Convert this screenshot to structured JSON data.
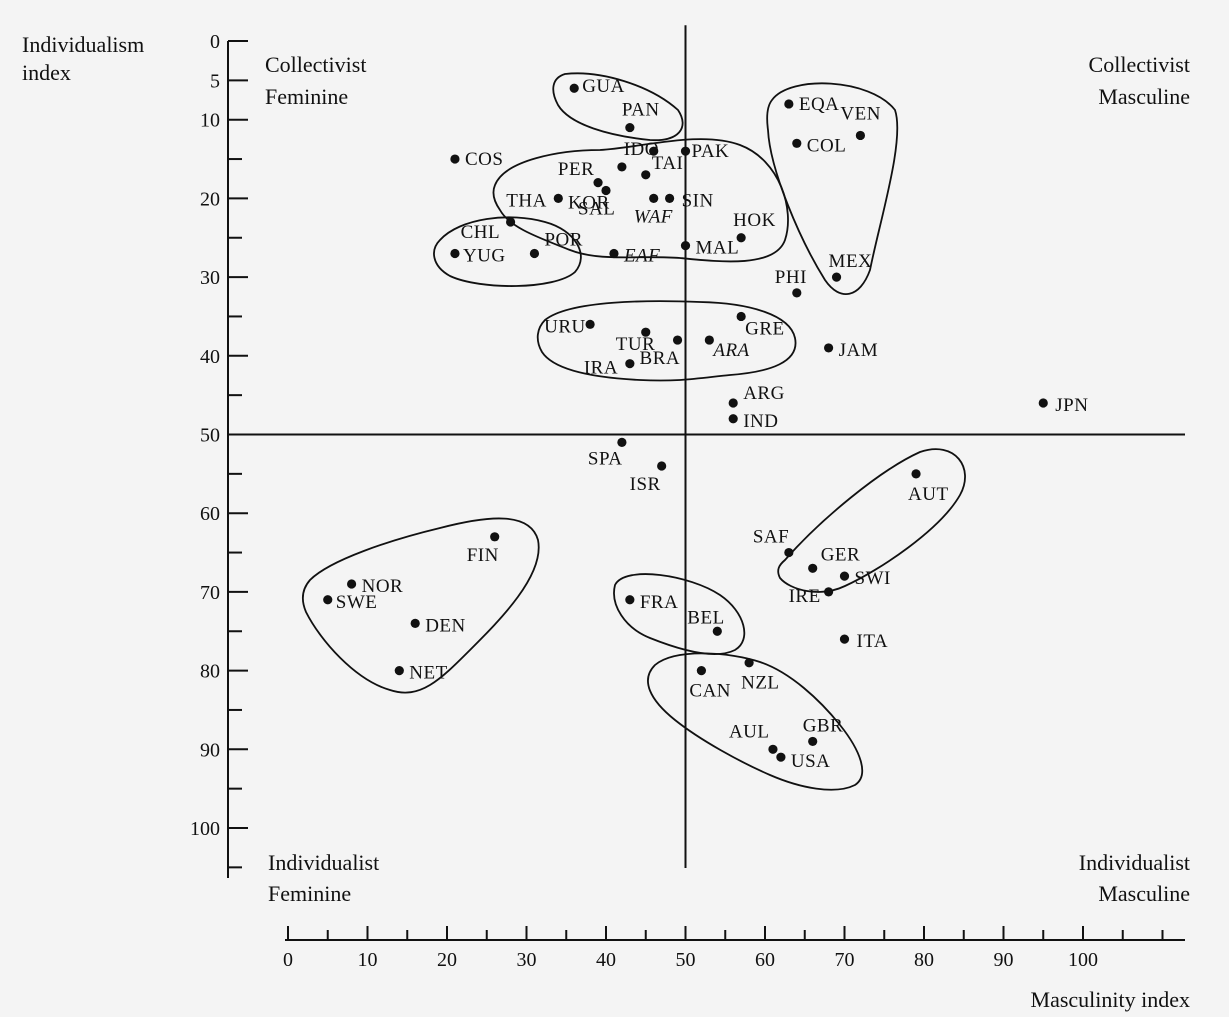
{
  "chart_data": {
    "type": "scatter",
    "xlabel": "Masculinity index",
    "ylabel_lines": [
      "Individualism",
      "index"
    ],
    "x_range": [
      0,
      110
    ],
    "y_range": [
      0,
      105
    ],
    "y_inverted": true,
    "x_ticks": [
      0,
      10,
      20,
      30,
      40,
      50,
      60,
      70,
      80,
      90,
      100
    ],
    "y_ticks": [
      0,
      5,
      10,
      20,
      30,
      40,
      50,
      60,
      70,
      80,
      90,
      100
    ],
    "reference_lines": {
      "x": 50,
      "y": 50
    },
    "quadrant_labels": {
      "top_left": [
        "Collectivist",
        "Feminine"
      ],
      "top_right": [
        "Collectivist",
        "Masculine"
      ],
      "bottom_left": [
        "Individualist",
        "Feminine"
      ],
      "bottom_right": [
        "Individualist",
        "Masculine"
      ]
    },
    "points": [
      {
        "label": "GUA",
        "x": 36,
        "y": 6
      },
      {
        "label": "PAN",
        "x": 43,
        "y": 11
      },
      {
        "label": "EQA",
        "x": 63,
        "y": 8
      },
      {
        "label": "VEN",
        "x": 72,
        "y": 12
      },
      {
        "label": "COL",
        "x": 64,
        "y": 13
      },
      {
        "label": "COS",
        "x": 21,
        "y": 15
      },
      {
        "label": "IDO",
        "x": 46,
        "y": 14
      },
      {
        "label": "PAK",
        "x": 50,
        "y": 14
      },
      {
        "label": "PER",
        "x": 42,
        "y": 16
      },
      {
        "label": "TAI",
        "x": 45,
        "y": 17
      },
      {
        "label": "THA",
        "x": 34,
        "y": 20
      },
      {
        "label": "SAL",
        "x": 40,
        "y": 19
      },
      {
        "label": "SIN",
        "x": 48,
        "y": 20
      },
      {
        "label": "WAF",
        "x": 46,
        "y": 20
      },
      {
        "label": "KOR",
        "x": 39,
        "y": 18
      },
      {
        "label": "HOK",
        "x": 57,
        "y": 25
      },
      {
        "label": "CHL",
        "x": 28,
        "y": 23
      },
      {
        "label": "POR",
        "x": 31,
        "y": 27
      },
      {
        "label": "YUG",
        "x": 21,
        "y": 27
      },
      {
        "label": "EAF",
        "x": 41,
        "y": 27
      },
      {
        "label": "MAL",
        "x": 50,
        "y": 26
      },
      {
        "label": "MEX",
        "x": 69,
        "y": 30
      },
      {
        "label": "PHI",
        "x": 64,
        "y": 32
      },
      {
        "label": "URU",
        "x": 38,
        "y": 36
      },
      {
        "label": "TUR",
        "x": 45,
        "y": 37
      },
      {
        "label": "GRE",
        "x": 57,
        "y": 35
      },
      {
        "label": "ARA",
        "x": 53,
        "y": 38
      },
      {
        "label": "JAM",
        "x": 68,
        "y": 39
      },
      {
        "label": "IRA",
        "x": 43,
        "y": 41
      },
      {
        "label": "BRA",
        "x": 49,
        "y": 38
      },
      {
        "label": "ARG",
        "x": 56,
        "y": 46
      },
      {
        "label": "IND",
        "x": 56,
        "y": 48
      },
      {
        "label": "JPN",
        "x": 95,
        "y": 46
      },
      {
        "label": "SPA",
        "x": 42,
        "y": 51
      },
      {
        "label": "ISR",
        "x": 47,
        "y": 54
      },
      {
        "label": "AUT",
        "x": 79,
        "y": 55
      },
      {
        "label": "FIN",
        "x": 26,
        "y": 63
      },
      {
        "label": "SAF",
        "x": 63,
        "y": 65
      },
      {
        "label": "GER",
        "x": 66,
        "y": 67
      },
      {
        "label": "SWI",
        "x": 70,
        "y": 68
      },
      {
        "label": "IRE",
        "x": 68,
        "y": 70
      },
      {
        "label": "NOR",
        "x": 8,
        "y": 69
      },
      {
        "label": "SWE",
        "x": 5,
        "y": 71
      },
      {
        "label": "DEN",
        "x": 16,
        "y": 74
      },
      {
        "label": "FRA",
        "x": 43,
        "y": 71
      },
      {
        "label": "BEL",
        "x": 54,
        "y": 75
      },
      {
        "label": "ITA",
        "x": 70,
        "y": 76
      },
      {
        "label": "NET",
        "x": 14,
        "y": 80
      },
      {
        "label": "CAN",
        "x": 52,
        "y": 80
      },
      {
        "label": "NZL",
        "x": 58,
        "y": 79
      },
      {
        "label": "GBR",
        "x": 66,
        "y": 89
      },
      {
        "label": "AUL",
        "x": 61,
        "y": 90
      },
      {
        "label": "USA",
        "x": 62,
        "y": 91
      }
    ]
  }
}
